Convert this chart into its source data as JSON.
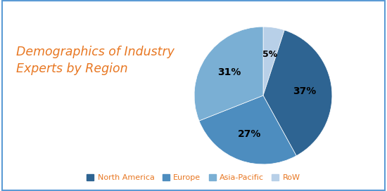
{
  "title": "Demographics of Industry\nExperts by Region",
  "title_color": "#E87722",
  "title_fontsize": 12.5,
  "slices": [
    5,
    37,
    27,
    31
  ],
  "labels": [
    "RoW",
    "North America",
    "Europe",
    "Asia-Pacific"
  ],
  "colors": [
    "#B8D0E8",
    "#2E6492",
    "#4D8DBF",
    "#7AAFD4"
  ],
  "pct_labels": [
    "5%",
    "37%",
    "27%",
    "31%"
  ],
  "legend_order": [
    "North America",
    "Europe",
    "Asia-Pacific",
    "RoW"
  ],
  "legend_colors": [
    "#2E6492",
    "#4D8DBF",
    "#7AAFD4",
    "#B8D0E8"
  ],
  "legend_text_color": "#E87722",
  "background_color": "#FFFFFF",
  "border_color": "#5B9BD5",
  "startangle": 90,
  "figsize": [
    5.5,
    2.72
  ],
  "dpi": 100
}
